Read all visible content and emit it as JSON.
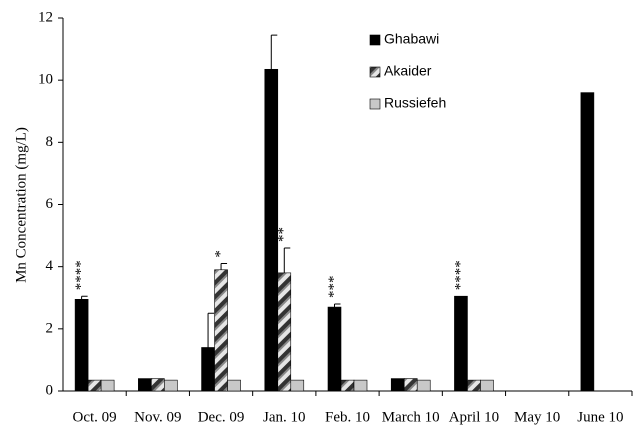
{
  "chart_data": {
    "type": "bar",
    "y_label": "Mn Concentration (mg/L)",
    "categories": [
      "Oct. 09",
      "Nov. 09",
      "Dec. 09",
      "Jan. 10",
      "Feb. 10",
      "March 10",
      "April 10",
      "May 10",
      "June 10"
    ],
    "series": [
      {
        "name": "Ghabawi",
        "color": "#000000",
        "values": [
          2.95,
          0.4,
          1.4,
          10.35,
          2.7,
          0.4,
          3.05,
          null,
          9.6
        ],
        "errors": [
          0.1,
          null,
          1.1,
          1.1,
          0.1,
          null,
          null,
          null,
          null
        ]
      },
      {
        "name": "Akaider",
        "color": "hatched",
        "values": [
          0.35,
          0.4,
          3.9,
          3.8,
          0.35,
          0.4,
          0.35,
          null,
          null
        ],
        "errors": [
          null,
          null,
          0.2,
          0.8,
          null,
          null,
          null,
          null,
          null
        ]
      },
      {
        "name": "Russiefeh",
        "color": "#c8c8c8",
        "values": [
          0.35,
          0.35,
          0.35,
          0.35,
          0.35,
          0.35,
          0.35,
          null,
          null
        ]
      }
    ],
    "annotations": [
      {
        "text": "****",
        "category": "Oct. 09",
        "series": "Ghabawi"
      },
      {
        "text": "*",
        "category": "Dec. 09",
        "series": "Akaider"
      },
      {
        "text": "**",
        "category": "Jan. 10",
        "series": "Akaider"
      },
      {
        "text": "***",
        "category": "Feb. 10",
        "series": "Ghabawi"
      },
      {
        "text": "****",
        "category": "April 10",
        "series": "Ghabawi"
      }
    ],
    "ylim": [
      0,
      12
    ],
    "yticks": [
      0,
      2,
      4,
      6,
      8,
      10,
      12
    ],
    "grid": false,
    "legend": "upper right"
  }
}
